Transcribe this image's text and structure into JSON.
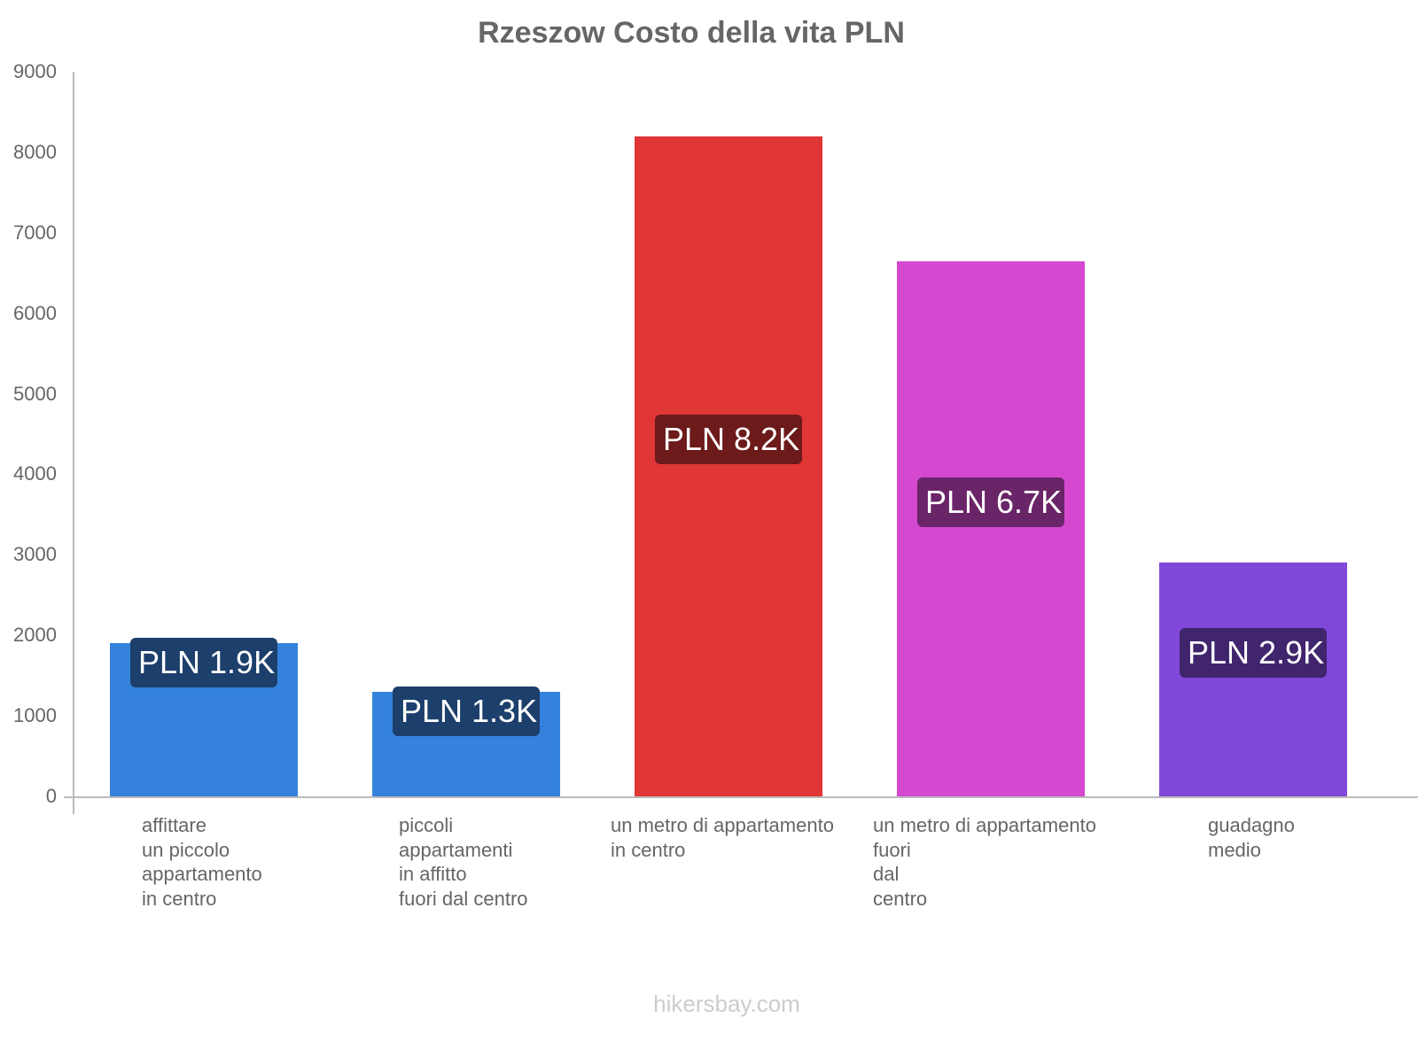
{
  "title": "Rzeszow Costo della vita PLN",
  "watermark": "hikersbay.com",
  "y_axis": {
    "ticks": [
      "0",
      "1000",
      "2000",
      "3000",
      "4000",
      "5000",
      "6000",
      "7000",
      "8000",
      "9000"
    ]
  },
  "bars": [
    {
      "label_lines": [
        "affittare",
        "un piccolo",
        "appartamento",
        "in centro"
      ],
      "value_label": "PLN 1.9K",
      "color": "#3482dc",
      "badge_color": "#1c3f6c"
    },
    {
      "label_lines": [
        "piccoli",
        "appartamenti",
        "in affitto",
        "fuori dal centro"
      ],
      "value_label": "PLN 1.3K",
      "color": "#3482dc",
      "badge_color": "#1c3f6c"
    },
    {
      "label_lines": [
        "un metro di appartamento",
        "in centro"
      ],
      "value_label": "PLN 8.2K",
      "color": "#e03636",
      "badge_color": "#6c1a1a"
    },
    {
      "label_lines": [
        "un metro di appartamento",
        "fuori",
        "dal",
        "centro"
      ],
      "value_label": "PLN 6.7K",
      "color": "#d548d0",
      "badge_color": "#6a2468"
    },
    {
      "label_lines": [
        "guadagno",
        "medio"
      ],
      "value_label": "PLN 2.9K",
      "color": "#8048d8",
      "badge_color": "#40246c"
    }
  ],
  "chart_data": {
    "type": "bar",
    "title": "Rzeszow Costo della vita PLN",
    "categories": [
      "affittare un piccolo appartamento in centro",
      "piccoli appartamenti in affitto fuori dal centro",
      "un metro di appartamento in centro",
      "un metro di appartamento fuori dal centro",
      "guadagno medio"
    ],
    "values": [
      1900,
      1300,
      8200,
      6650,
      2900
    ],
    "data_labels": [
      "PLN 1.9K",
      "PLN 1.3K",
      "PLN 8.2K",
      "PLN 6.7K",
      "PLN 2.9K"
    ],
    "colors": [
      "#3482dc",
      "#3482dc",
      "#e03636",
      "#d548d0",
      "#8048d8"
    ],
    "xlabel": "",
    "ylabel": "",
    "ylim": [
      0,
      9000
    ],
    "yticks": [
      0,
      1000,
      2000,
      3000,
      4000,
      5000,
      6000,
      7000,
      8000,
      9000
    ],
    "grid": false,
    "legend": "none"
  }
}
